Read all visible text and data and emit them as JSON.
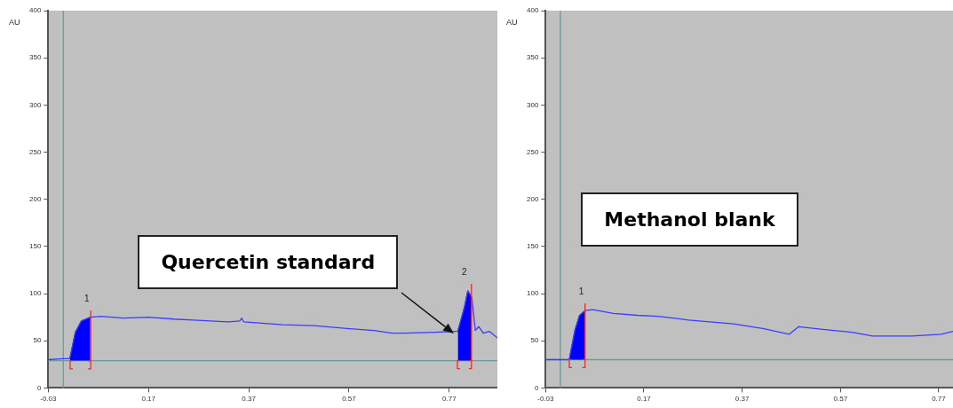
{
  "chart_data": [
    {
      "type": "line",
      "ylabel": "AU",
      "xlim": [
        -0.03,
        0.866
      ],
      "ylim": [
        0,
        400
      ],
      "xticks": [
        -0.03,
        0.17,
        0.37,
        0.57,
        0.77
      ],
      "yticks": [
        0,
        50,
        100,
        150,
        200,
        250,
        300,
        350,
        400
      ],
      "grid": false,
      "legend": false,
      "marker": "none",
      "series": [
        {
          "color": "#3c3cff",
          "x": [
            -0.03,
            0.0,
            0.013,
            0.024,
            0.036,
            0.054,
            0.075,
            0.12,
            0.17,
            0.22,
            0.26,
            0.33,
            0.352,
            0.356,
            0.36,
            0.438,
            0.5,
            0.566,
            0.62,
            0.656,
            0.68,
            0.74,
            0.783,
            0.787,
            0.8,
            0.807,
            0.815,
            0.822,
            0.829,
            0.838,
            0.85,
            0.866
          ],
          "values": [
            30,
            31,
            31,
            59,
            71,
            75,
            76,
            74,
            75,
            73,
            72,
            70,
            71,
            74,
            70,
            67,
            66,
            63,
            61,
            58,
            58,
            59,
            60,
            60,
            85,
            103,
            96,
            61,
            65,
            58,
            60,
            53
          ]
        },
        {
          "type": "area",
          "name": "1",
          "color": "#0000ff",
          "x": [
            0.013,
            0.024,
            0.036,
            0.054
          ],
          "values": [
            31,
            59,
            71,
            75
          ]
        },
        {
          "type": "area",
          "name": "2",
          "color": "#0000ff",
          "x": [
            0.787,
            0.8,
            0.807,
            0.815
          ],
          "values": [
            60,
            85,
            103,
            96
          ]
        }
      ],
      "ref_lines": [
        {
          "axis": "x",
          "value": 0,
          "color": "#6a9a9a"
        },
        {
          "axis": "y",
          "value": 29,
          "color": "#6a9a9a"
        }
      ],
      "annotations": [
        "Quercetin standard"
      ]
    },
    {
      "type": "line",
      "ylabel": "AU",
      "xlim": [
        -0.03,
        0.799
      ],
      "ylim": [
        0,
        400
      ],
      "xticks": [
        -0.03,
        0.17,
        0.37,
        0.57,
        0.77
      ],
      "yticks": [
        0,
        50,
        100,
        150,
        200,
        250,
        300,
        350,
        400
      ],
      "grid": false,
      "legend": false,
      "marker": "none",
      "series": [
        {
          "color": "#3c3cff",
          "x": [
            -0.03,
            0.0,
            0.018,
            0.03,
            0.039,
            0.05,
            0.066,
            0.108,
            0.157,
            0.199,
            0.261,
            0.352,
            0.412,
            0.466,
            0.485,
            0.534,
            0.594,
            0.635,
            0.715,
            0.775,
            0.799
          ],
          "values": [
            30,
            30,
            30,
            62,
            77,
            82,
            83,
            79,
            77,
            76,
            72,
            68,
            63,
            57,
            65,
            62,
            59,
            55,
            55,
            57,
            60
          ]
        },
        {
          "type": "area",
          "name": "1",
          "color": "#0000ff",
          "x": [
            0.018,
            0.03,
            0.039,
            0.05
          ],
          "values": [
            30,
            62,
            77,
            82
          ]
        }
      ],
      "ref_lines": [
        {
          "axis": "x",
          "value": 0,
          "color": "#6a9a9a"
        },
        {
          "axis": "y",
          "value": 30,
          "color": "#6a9a9a"
        }
      ],
      "annotations": [
        "Methanol blank"
      ]
    }
  ]
}
